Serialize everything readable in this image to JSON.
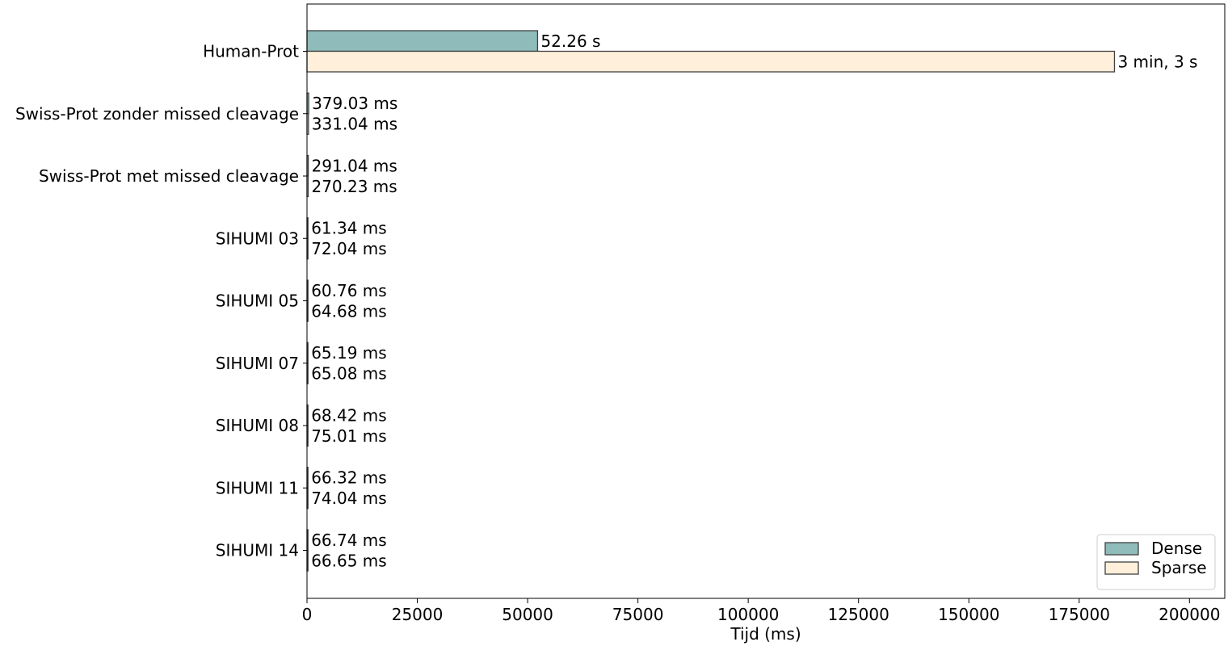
{
  "chart_data": {
    "type": "bar",
    "orientation": "horizontal",
    "title": "",
    "xlabel": "Tijd (ms)",
    "ylabel": "",
    "xlim": [
      0,
      208000
    ],
    "xticks": [
      0,
      25000,
      50000,
      75000,
      100000,
      125000,
      150000,
      175000,
      200000
    ],
    "grid": false,
    "legend_position": "bottom-right",
    "categories": [
      "Human-Prot",
      "Swiss-Prot zonder missed cleavage",
      "Swiss-Prot met missed cleavage",
      "SIHUMI 03",
      "SIHUMI 05",
      "SIHUMI 07",
      "SIHUMI 08",
      "SIHUMI 11",
      "SIHUMI 14"
    ],
    "series": [
      {
        "name": "Dense",
        "color": "#8fbcbb",
        "values": [
          52260,
          379.03,
          291.04,
          61.34,
          60.76,
          65.19,
          68.42,
          66.32,
          66.74
        ],
        "labels": [
          "52.26 s",
          "379.03 ms",
          "291.04 ms",
          "61.34 ms",
          "60.76 ms",
          "65.19 ms",
          "68.42 ms",
          "66.32 ms",
          "66.74 ms"
        ]
      },
      {
        "name": "Sparse",
        "color": "#ffefdb",
        "values": [
          183000,
          331.04,
          270.23,
          72.04,
          64.68,
          65.08,
          75.01,
          74.04,
          66.65
        ],
        "labels": [
          "3 min, 3 s",
          "331.04 ms",
          "270.23 ms",
          "72.04 ms",
          "64.68 ms",
          "65.08 ms",
          "75.01 ms",
          "74.04 ms",
          "66.65 ms"
        ]
      }
    ]
  }
}
